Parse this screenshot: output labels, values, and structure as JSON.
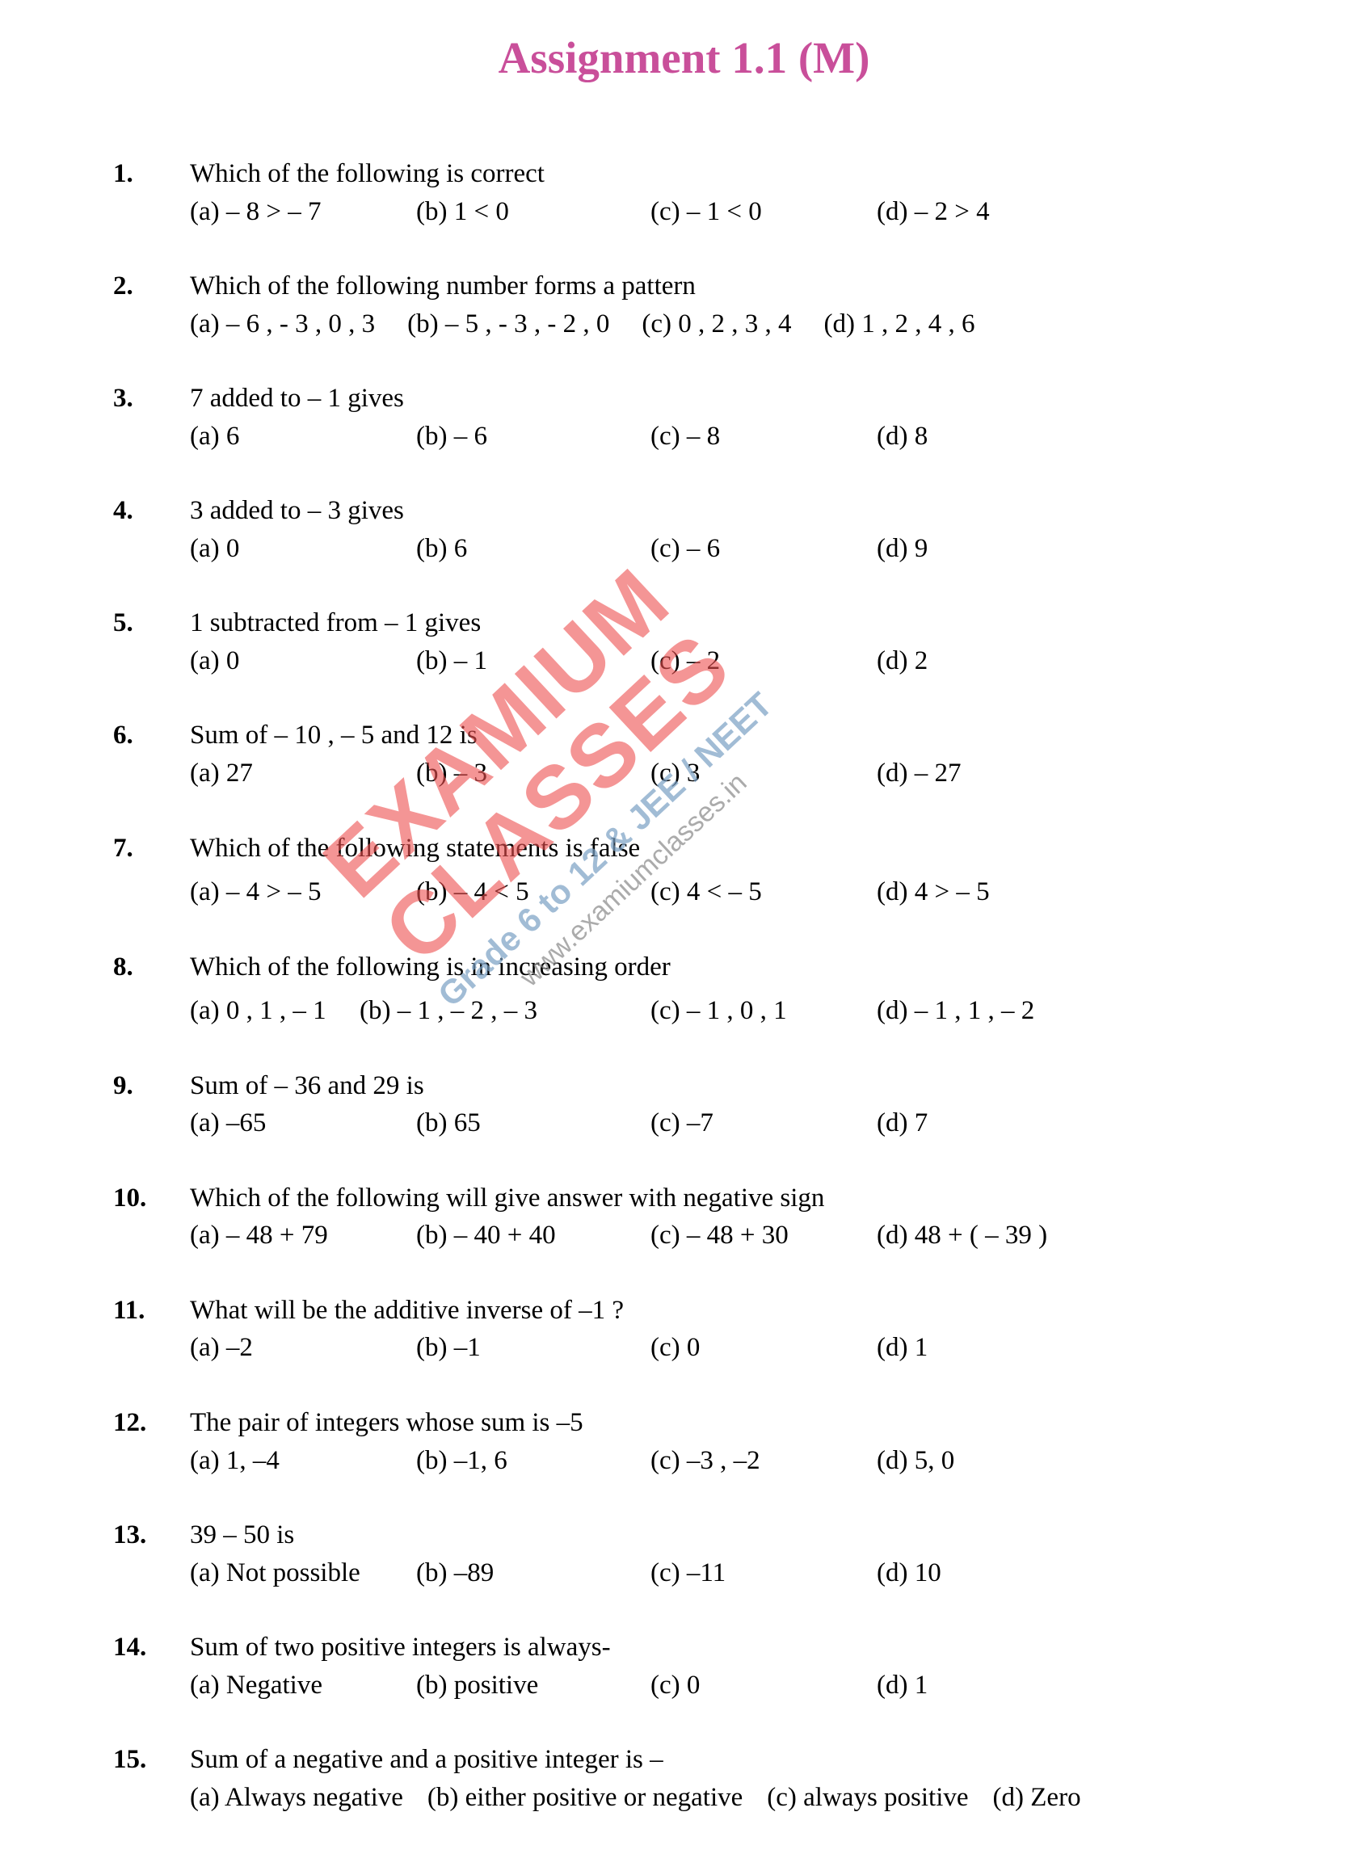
{
  "title": {
    "text": "Assignment 1.1 (M)",
    "color": "#c94f9a"
  },
  "watermark": {
    "line1": "EXAMIUM CLASSES",
    "line2": "Grade 6 to 12 & JEE / NEET",
    "line3": "www.examiumclasses.in",
    "color_main": "#ee4f4f",
    "color_sub": "#7aa0c4",
    "color_url": "#888888"
  },
  "questions": [
    {
      "n": "1.",
      "stem": "Which of the following is correct",
      "opts": [
        "(a) – 8 > – 7",
        "(b) 1  < 0",
        "(c) – 1 < 0",
        "(d) – 2 > 4"
      ],
      "layout": "cols4"
    },
    {
      "n": "2.",
      "stem": "Which of the following number forms  a pattern",
      "opts": [
        "(a) – 6 , - 3 , 0 , 3",
        "(b) – 5 , - 3 , - 2 , 0",
        "(c) 0 , 2 , 3 , 4",
        "(d) 1 , 2 , 4 , 6"
      ],
      "layout": "wide"
    },
    {
      "n": "3.",
      "stem": "7 added to – 1 gives",
      "opts": [
        "(a) 6",
        "(b)  – 6",
        "(c)  – 8",
        "(d)   8"
      ],
      "layout": "cols4"
    },
    {
      "n": "4.",
      "stem": "3 added to – 3  gives",
      "opts": [
        "(a) 0",
        "(b)  6",
        "(c)   – 6",
        "(d)   9"
      ],
      "layout": "cols4"
    },
    {
      "n": "5.",
      "stem": "1 subtracted from – 1 gives",
      "opts": [
        "(a) 0",
        "(b)  – 1",
        "(c)  – 2",
        "(d)   2"
      ],
      "layout": "cols4"
    },
    {
      "n": "6.",
      "stem": "Sum of  – 10 , – 5 and 12 is",
      "opts": [
        "(a) 27",
        "(b) – 3",
        "(c)   3",
        "(d) – 27"
      ],
      "layout": "cols4"
    },
    {
      "n": "7.",
      "stem": "Which of the following statements  is false",
      "opts": [
        "(a) – 4 > – 5",
        "(b) – 4 < 5",
        "(c) 4  < – 5",
        "(d) 4 > – 5"
      ],
      "layout": "cols4",
      "gap": true
    },
    {
      "n": "8.",
      "stem": "Which of the following is in increasing order",
      "opts": [
        "(a) 0 , 1 , – 1",
        "(b) – 1 , – 2 , – 3",
        "(c) – 1 , 0 , 1",
        "(d) – 1 , 1 , – 2"
      ],
      "layout": "q8",
      "gap": true
    },
    {
      "n": "9.",
      "stem": "Sum of – 36 and 29 is",
      "opts": [
        "(a)  –65",
        "(b) 65",
        "(c) –7",
        "(d) 7"
      ],
      "layout": "cols4"
    },
    {
      "n": "10.",
      "stem": "Which of the following will give answer with negative sign",
      "opts": [
        "(a)  – 48 + 79",
        "(b) – 40 + 40",
        "(c) – 48 + 30",
        "(d) 48 + ( – 39 )"
      ],
      "layout": "cols4"
    },
    {
      "n": "11.",
      "stem": "What will be the additive inverse of –1 ?",
      "opts": [
        "(a) –2",
        "(b) –1",
        "(c)   0",
        "(d)     1"
      ],
      "layout": "cols4"
    },
    {
      "n": "12.",
      "stem": "The pair of integers whose sum is  –5",
      "opts": [
        "(a) 1, –4",
        "(b) –1, 6",
        "(c)  –3 , –2",
        " (d)  5,  0"
      ],
      "layout": "cols4"
    },
    {
      "n": "13.",
      "stem": "39 – 50  is",
      "opts": [
        "(a)  Not possible",
        "(b)  –89",
        "(c)  –11",
        " (d)   10"
      ],
      "layout": "cols4"
    },
    {
      "n": "14.",
      "stem": "Sum  of  two positive integers is always-",
      "opts": [
        "(a)  Negative",
        "(b)  positive",
        "(c)  0",
        "(d)  1"
      ],
      "layout": "cols4"
    },
    {
      "n": "15.",
      "stem": "Sum of a negative and a positive integer is –",
      "opts": [
        "(a)  Always negative",
        "(b)  either positive or negative",
        "(c)  always positive",
        "(d)  Zero"
      ],
      "layout": "inline"
    }
  ]
}
